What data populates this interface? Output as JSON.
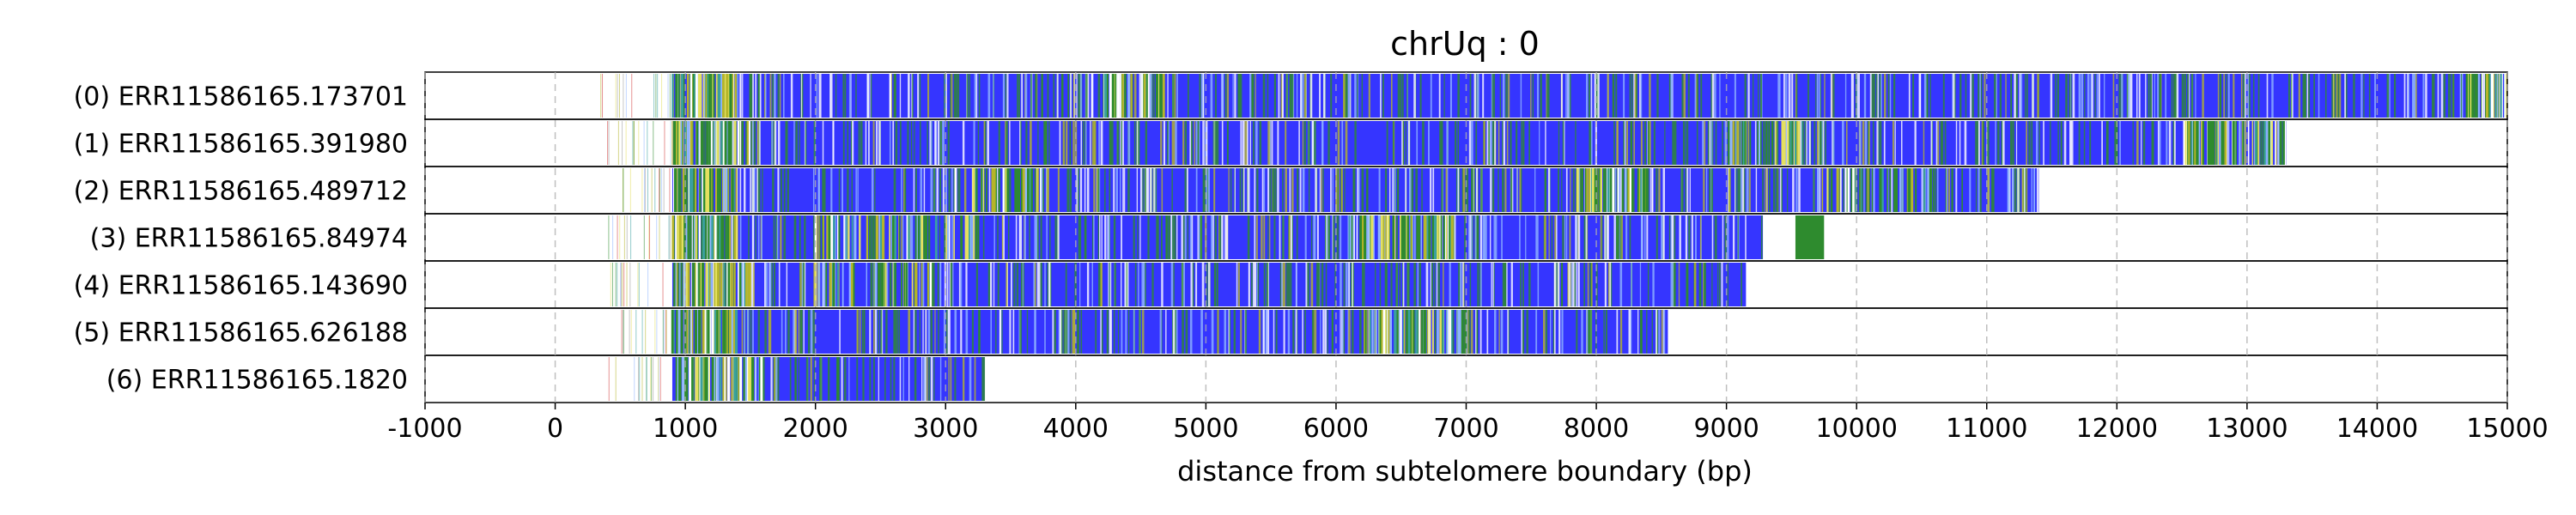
{
  "chart_data": {
    "type": "heatmap",
    "title": "chrUq : 0",
    "xlabel": "distance from subtelomere boundary (bp)",
    "ylabel": "",
    "xlim": [
      -1000,
      15000
    ],
    "xticks": [
      -1000,
      0,
      1000,
      2000,
      3000,
      4000,
      5000,
      6000,
      7000,
      8000,
      9000,
      10000,
      11000,
      12000,
      13000,
      14000,
      15000
    ],
    "grid": "vertical dashed",
    "colors": {
      "blue": "#3535ff",
      "green": "#2e8b2e",
      "olive": "#b5b52a",
      "yellow": "#e4e060",
      "white": "#ffffff",
      "red": "#d23a3a",
      "teal": "#3aa0a0",
      "light_blue": "#8fb4ff"
    },
    "reads": [
      {
        "label": "(0) ERR11586165.173701",
        "start": 900,
        "end": 15000,
        "segments": [
          {
            "from": 900,
            "to": 1400,
            "density": 0.7
          },
          {
            "from": 4200,
            "to": 4700,
            "density": 0.45
          },
          {
            "from": 14600,
            "to": 15000,
            "density": 0.55
          }
        ],
        "blocks": []
      },
      {
        "label": "(1) ERR11586165.391980",
        "start": 900,
        "end": 13300,
        "segments": [
          {
            "from": 900,
            "to": 1500,
            "density": 0.7
          },
          {
            "from": 9000,
            "to": 9600,
            "density": 0.35
          },
          {
            "from": 12500,
            "to": 13300,
            "density": 0.55
          }
        ],
        "blocks": []
      },
      {
        "label": "(2) ERR11586165.489712",
        "start": 900,
        "end": 11400,
        "segments": [
          {
            "from": 900,
            "to": 1400,
            "density": 0.7
          },
          {
            "from": 3200,
            "to": 3800,
            "density": 0.45
          },
          {
            "from": 7850,
            "to": 8400,
            "density": 0.6
          },
          {
            "from": 9700,
            "to": 10600,
            "density": 0.3
          }
        ],
        "blocks": []
      },
      {
        "label": "(3) ERR11586165.84974",
        "start": 900,
        "end": 9280,
        "segments": [
          {
            "from": 900,
            "to": 1400,
            "density": 0.75
          },
          {
            "from": 2000,
            "to": 3300,
            "density": 0.3
          },
          {
            "from": 6100,
            "to": 6900,
            "density": 0.7
          }
        ],
        "blocks": [
          {
            "from": 9530,
            "to": 9750,
            "color": "green"
          }
        ]
      },
      {
        "label": "(4) ERR11586165.143690",
        "start": 900,
        "end": 9150,
        "segments": [
          {
            "from": 900,
            "to": 1500,
            "density": 0.7
          },
          {
            "from": 2000,
            "to": 3000,
            "density": 0.25
          }
        ],
        "blocks": []
      },
      {
        "label": "(5) ERR11586165.626188",
        "start": 900,
        "end": 8550,
        "segments": [
          {
            "from": 900,
            "to": 1400,
            "density": 0.75
          },
          {
            "from": 6200,
            "to": 7000,
            "density": 0.6
          }
        ],
        "blocks": []
      },
      {
        "label": "(6) ERR11586165.1820",
        "start": 900,
        "end": 3300,
        "segments": [
          {
            "from": 900,
            "to": 1600,
            "density": 0.7
          }
        ],
        "blocks": []
      }
    ]
  }
}
